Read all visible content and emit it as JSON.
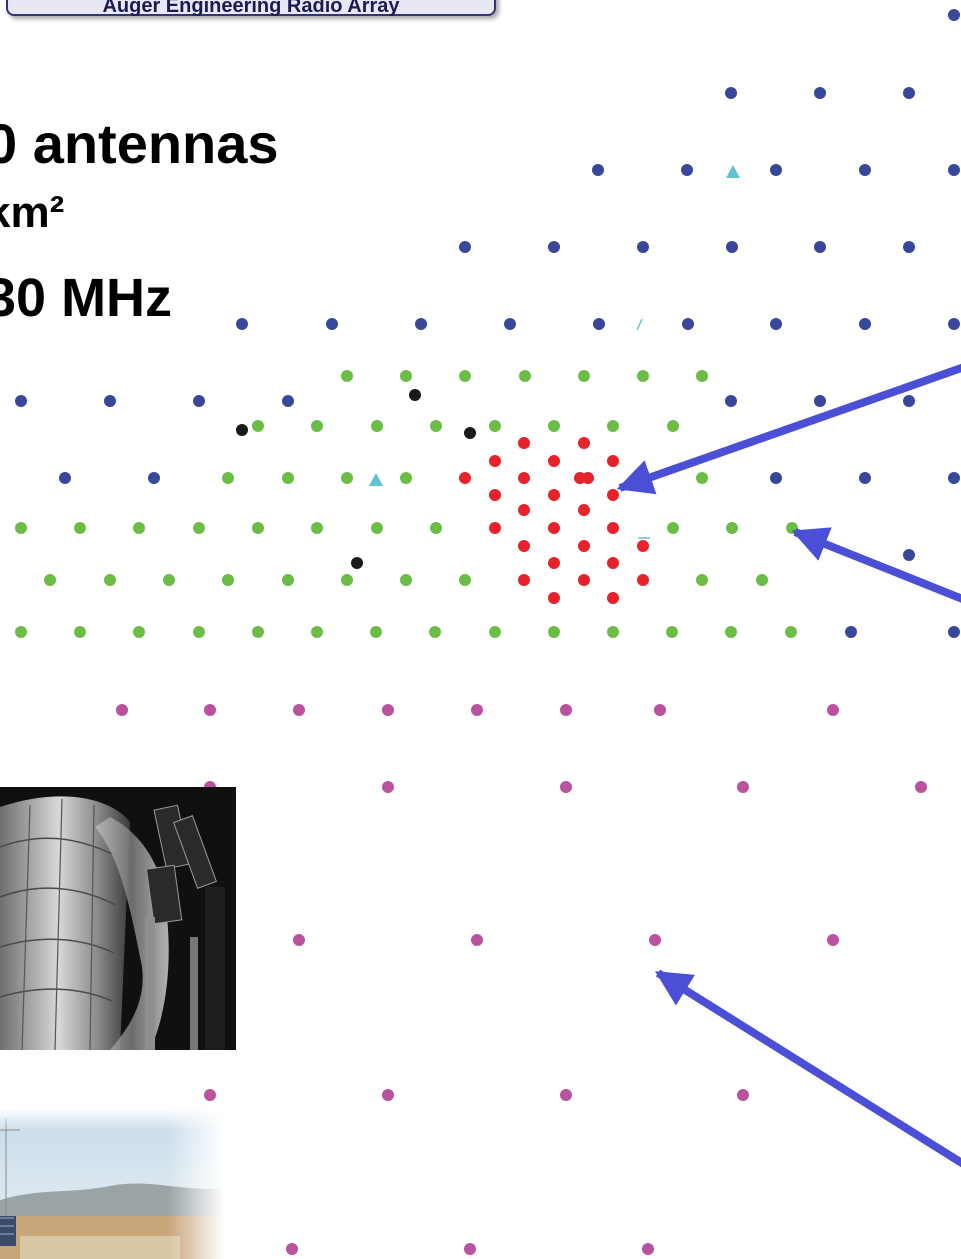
{
  "title": "Auger Engineering Radio Array",
  "specs": {
    "antennas": "0 antennas",
    "area": "km²",
    "frequency": "30 MHz"
  },
  "colors": {
    "blue": "#38479a",
    "green": "#6cbd45",
    "red": "#e8222b",
    "black": "#1a1a1a",
    "magenta": "#b9529f",
    "cyan": "#5ec4d4",
    "arrow": "#4b4fd6",
    "title_border": "#33337a"
  },
  "photos": {
    "top": "antenna-photo",
    "bottom": "site-photo"
  }
}
